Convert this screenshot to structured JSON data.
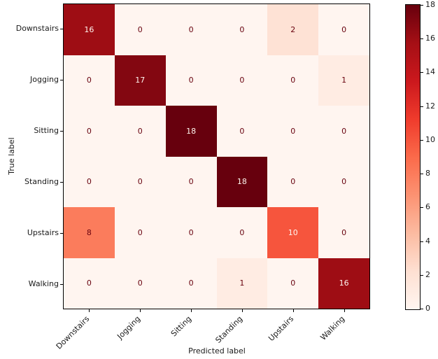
{
  "chart_data": {
    "type": "heatmap",
    "subtype": "confusion-matrix",
    "xlabel": "Predicted label",
    "ylabel": "True label",
    "categories": [
      "Downstairs",
      "Jogging",
      "Sitting",
      "Standing",
      "Upstairs",
      "Walking"
    ],
    "x_tick_labels": [
      "Downstairs",
      "Jogging",
      "Sitting",
      "Standing",
      "Upstairs",
      "Walking"
    ],
    "y_tick_labels": [
      "Downstairs",
      "Jogging",
      "Sitting",
      "Standing",
      "Upstairs",
      "Walking"
    ],
    "matrix": [
      [
        16,
        0,
        0,
        0,
        2,
        0
      ],
      [
        0,
        17,
        0,
        0,
        0,
        1
      ],
      [
        0,
        0,
        18,
        0,
        0,
        0
      ],
      [
        0,
        0,
        0,
        18,
        0,
        0
      ],
      [
        8,
        0,
        0,
        0,
        10,
        0
      ],
      [
        0,
        0,
        0,
        1,
        0,
        16
      ]
    ],
    "vmin": 0,
    "vmax": 18,
    "colorbar_ticks": [
      0,
      2,
      4,
      6,
      8,
      10,
      12,
      14,
      16,
      18
    ],
    "x_tick_rotation_deg": 45,
    "grid": false,
    "legend_position": "colorbar-right",
    "colormap": {
      "name": "Reds",
      "stops": [
        "#fff5f0",
        "#fee0d2",
        "#fcbba1",
        "#fc9272",
        "#fb6a4a",
        "#ef3b2c",
        "#cb181d",
        "#a50f15",
        "#67000d"
      ]
    },
    "cell_text_color_on_dark": "#fff5f0",
    "cell_text_color_on_light": "#67000d",
    "axis_color": "#000000",
    "background_color": "#ffffff"
  }
}
